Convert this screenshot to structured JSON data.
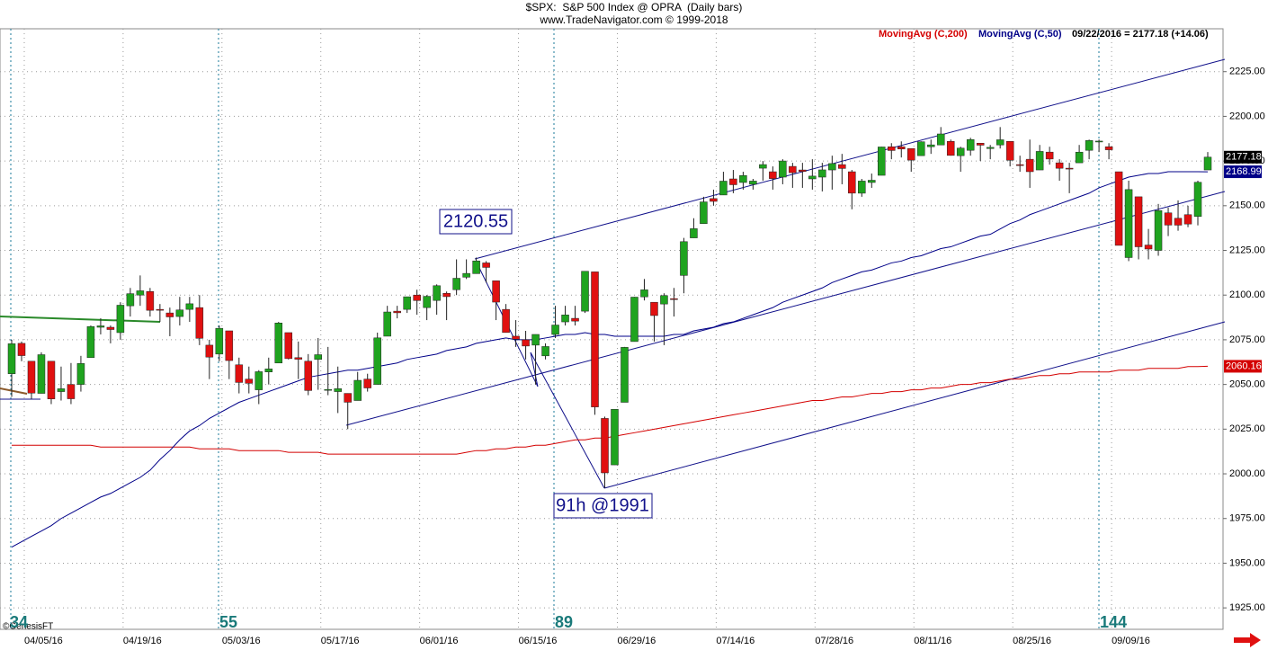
{
  "header": {
    "title": "$SPX:  S&P 500 Index @ OPRA  (Daily bars)",
    "subtitle": "www.TradeNavigator.com © 1999-2018",
    "status": "09/22/2016 = 2177.18 (+14.06)",
    "credit": "©GenesisFT"
  },
  "annotations": [
    "2120.55",
    "91h @1991"
  ],
  "cycles": [
    34,
    55,
    89,
    144
  ],
  "chart_data": {
    "type": "candlestick",
    "categories": [
      null,
      null,
      "04/05/16",
      null,
      null,
      null,
      null,
      null,
      null,
      null,
      null,
      null,
      "04/19/16",
      null,
      null,
      null,
      null,
      null,
      null,
      null,
      null,
      null,
      "05/03/16",
      null,
      null,
      null,
      null,
      null,
      null,
      null,
      null,
      null,
      "05/17/16",
      null,
      null,
      null,
      null,
      null,
      null,
      null,
      null,
      null,
      "06/01/16",
      null,
      null,
      null,
      null,
      null,
      null,
      null,
      null,
      null,
      "06/15/16",
      null,
      null,
      null,
      null,
      null,
      null,
      null,
      null,
      null,
      "06/29/16",
      null,
      null,
      null,
      null,
      null,
      null,
      null,
      null,
      null,
      "07/14/16",
      null,
      null,
      null,
      null,
      null,
      null,
      null,
      null,
      null,
      "07/28/16",
      null,
      null,
      null,
      null,
      null,
      null,
      null,
      null,
      null,
      "08/11/16",
      null,
      null,
      null,
      null,
      null,
      null,
      null,
      null,
      null,
      "08/25/16",
      null,
      null,
      null,
      null,
      null,
      null,
      null,
      null,
      null,
      "09/09/16",
      null,
      null,
      null,
      null,
      null,
      null,
      null,
      null,
      null
    ],
    "open": [
      2056,
      2073,
      2063,
      2045,
      2063,
      2046,
      2050,
      2050,
      2065,
      2082,
      2082,
      2079,
      2094,
      2100,
      2102,
      2092,
      2090,
      2088,
      2092,
      2093,
      2072,
      2067,
      2080,
      2061,
      2053,
      2047,
      2057,
      2062,
      2079,
      2065,
      2063,
      2064,
      2047,
      2046,
      2045,
      2041,
      2053,
      2050,
      2077,
      2091,
      2092,
      2100,
      2093,
      2097,
      2101,
      2103,
      2110,
      2112,
      2118,
      2108,
      2092,
      2077,
      2075,
      2072,
      2066,
      2078,
      2085,
      2087,
      2091,
      2113,
      2031,
      2005,
      2040,
      2074,
      2099,
      2096,
      2095,
      2098,
      2111,
      2132,
      2140,
      2154,
      2156,
      2165,
      2163,
      2162,
      2171,
      2169,
      2166,
      2172,
      2170,
      2165,
      2166,
      2170,
      2173,
      2169,
      2157,
      2163,
      2167,
      2183,
      2183,
      2182,
      2178,
      2183,
      2184,
      2186,
      2178,
      2181,
      2185,
      2182,
      2184,
      2186,
      2173,
      2176,
      2170,
      2180,
      2174,
      2171,
      2174,
      2181,
      2186,
      2183,
      2169,
      2121,
      2155,
      2128,
      2125,
      2146,
      2143,
      2145,
      2144,
      2170
    ],
    "high": [
      2075,
      2074,
      2063,
      2068,
      2063,
      2060,
      2062,
      2066,
      2083,
      2087,
      2083,
      2096,
      2104,
      2111,
      2104,
      2095,
      2093,
      2099,
      2099,
      2100,
      2075,
      2083,
      2080,
      2065,
      2060,
      2058,
      2065,
      2085,
      2079,
      2074,
      2067,
      2076,
      2071,
      2060,
      2045,
      2057,
      2056,
      2079,
      2094,
      2094,
      2099,
      2103,
      2100,
      2106,
      2102,
      2120,
      2120,
      2121,
      2119,
      2108,
      2095,
      2086,
      2080,
      2078,
      2073,
      2094,
      2094,
      2094,
      2113,
      2113,
      2032,
      2036,
      2071,
      2099,
      2109,
      2096,
      2101,
      2104,
      2132,
      2143,
      2155,
      2159,
      2169,
      2170,
      2169,
      2165,
      2175,
      2172,
      2176,
      2174,
      2174,
      2176,
      2174,
      2178,
      2179,
      2170,
      2165,
      2168,
      2183,
      2185,
      2186,
      2182,
      2186,
      2187,
      2194,
      2187,
      2183,
      2188,
      2185,
      2184,
      2194,
      2186,
      2178,
      2187,
      2184,
      2183,
      2176,
      2174,
      2184,
      2187,
      2187,
      2185,
      2169,
      2164,
      2155,
      2137,
      2151,
      2149,
      2153,
      2150,
      2164,
      2180
    ],
    "low": [
      2043,
      2063,
      2042,
      2045,
      2039,
      2041,
      2039,
      2046,
      2065,
      2078,
      2073,
      2075,
      2088,
      2094,
      2088,
      2085,
      2077,
      2083,
      2085,
      2072,
      2053,
      2063,
      2053,
      2045,
      2045,
      2039,
      2050,
      2062,
      2064,
      2053,
      2044,
      2047,
      2044,
      2034,
      2025,
      2041,
      2046,
      2050,
      2077,
      2087,
      2090,
      2089,
      2086,
      2089,
      2086,
      2100,
      2109,
      2112,
      2107,
      2086,
      2079,
      2071,
      2064,
      2050,
      2064,
      2076,
      2083,
      2083,
      2090,
      2033,
      1992,
      2005,
      2040,
      2074,
      2097,
      2074,
      2072,
      2088,
      2101,
      2132,
      2140,
      2150,
      2156,
      2157,
      2159,
      2159,
      2164,
      2159,
      2162,
      2160,
      2160,
      2159,
      2158,
      2159,
      2162,
      2148,
      2155,
      2160,
      2167,
      2176,
      2177,
      2169,
      2178,
      2179,
      2184,
      2178,
      2169,
      2178,
      2175,
      2176,
      2182,
      2172,
      2169,
      2160,
      2170,
      2173,
      2164,
      2157,
      2174,
      2176,
      2180,
      2176,
      2128,
      2119,
      2120,
      2120,
      2122,
      2133,
      2136,
      2138,
      2139,
      2170
    ],
    "close": [
      2072.78,
      2066.13,
      2045.17,
      2066.66,
      2041.91,
      2047.6,
      2041.99,
      2061.72,
      2082.42,
      2082.78,
      2080.73,
      2094.34,
      2100.8,
      2102.4,
      2091.48,
      2091.58,
      2087.79,
      2091.7,
      2095.15,
      2075.81,
      2065.3,
      2081.43,
      2063.37,
      2051.12,
      2050.63,
      2057.14,
      2058.69,
      2084.39,
      2064.46,
      2064.11,
      2046.61,
      2066.66,
      2047.21,
      2047.63,
      2040.04,
      2052.32,
      2048.04,
      2076.06,
      2090.54,
      2090.1,
      2099.06,
      2096.95,
      2099.33,
      2105.26,
      2099.13,
      2109.41,
      2112.13,
      2119.12,
      2115.48,
      2096.07,
      2079.06,
      2075.32,
      2071.5,
      2077.99,
      2071.22,
      2083.25,
      2088.9,
      2085.45,
      2113.32,
      2037.41,
      2000.54,
      2036.09,
      2070.77,
      2098.86,
      2102.95,
      2088.55,
      2099.73,
      2097.9,
      2129.9,
      2137.16,
      2152.14,
      2152.43,
      2163.75,
      2161.74,
      2166.89,
      2163.78,
      2173.02,
      2165.17,
      2175.03,
      2168.48,
      2169.18,
      2166.58,
      2170.06,
      2173.6,
      2170.84,
      2157.03,
      2163.79,
      2164.25,
      2182.87,
      2180.89,
      2181.74,
      2175.49,
      2185.79,
      2184.05,
      2190.15,
      2178.15,
      2182.22,
      2187.02,
      2183.87,
      2182.64,
      2186.9,
      2175.44,
      2172.47,
      2169.04,
      2180.38,
      2176.12,
      2170.95,
      2170.86,
      2179.98,
      2186.48,
      2186.16,
      2181.3,
      2127.81,
      2159.04,
      2127.02,
      2125.77,
      2147.26,
      2139.16,
      2139.12,
      2139.76,
      2163.12,
      2177.18
    ],
    "up_color": "#1fa31f",
    "down_color": "#e01010",
    "series": [
      {
        "name": "MovingAvg (C,200)",
        "color": "#d40000",
        "values": [
          2016,
          2016,
          2016,
          2016,
          2016,
          2016,
          2016,
          2016,
          2016,
          2015,
          2015,
          2015,
          2015,
          2015,
          2015,
          2015,
          2015,
          2015,
          2015,
          2014,
          2014,
          2014,
          2014,
          2013,
          2013,
          2013,
          2013,
          2013,
          2012,
          2012,
          2012,
          2012,
          2011,
          2011,
          2011,
          2011,
          2011,
          2011,
          2011,
          2011,
          2011,
          2011,
          2011,
          2011,
          2011,
          2011,
          2012,
          2013,
          2013,
          2014,
          2014,
          2015,
          2015,
          2016,
          2016,
          2017,
          2018,
          2019,
          2019,
          2020,
          2020,
          2021,
          2022,
          2023,
          2024,
          2025,
          2026,
          2027,
          2028,
          2029,
          2030,
          2031,
          2032,
          2033,
          2034,
          2035,
          2036,
          2037,
          2038,
          2039,
          2040,
          2041,
          2041,
          2042,
          2043,
          2043,
          2044,
          2045,
          2045,
          2046,
          2046,
          2047,
          2047,
          2048,
          2048,
          2049,
          2050,
          2050,
          2051,
          2051,
          2052,
          2053,
          2053,
          2054,
          2055,
          2055,
          2056,
          2056,
          2057,
          2057,
          2057,
          2057,
          2058,
          2058,
          2058,
          2059,
          2059,
          2059,
          2059,
          2060,
          2060,
          2060.16
        ]
      },
      {
        "name": "MovingAvg (C,50)",
        "color": "#000088",
        "values": [
          1959,
          1962,
          1965,
          1968,
          1971,
          1975,
          1978,
          1981,
          1984,
          1987,
          1989,
          1992,
          1995,
          1998,
          2002,
          2008,
          2013,
          2019,
          2024,
          2027,
          2031,
          2034,
          2037,
          2040,
          2042,
          2044,
          2046,
          2048,
          2050,
          2052,
          2054,
          2055,
          2056,
          2057,
          2058,
          2058,
          2059,
          2060,
          2061,
          2062,
          2064,
          2065,
          2066,
          2067,
          2069,
          2070,
          2071,
          2073,
          2074,
          2075,
          2076,
          2075,
          2075,
          2075,
          2076,
          2077,
          2078,
          2078,
          2079,
          2078,
          2078,
          2077,
          2077,
          2077,
          2077,
          2077,
          2077,
          2078,
          2078,
          2080,
          2081,
          2082,
          2084,
          2085,
          2087,
          2089,
          2091,
          2093,
          2096,
          2098,
          2100,
          2102,
          2104,
          2107,
          2109,
          2111,
          2113,
          2114,
          2116,
          2118,
          2119,
          2121,
          2122,
          2124,
          2126,
          2127,
          2129,
          2131,
          2133,
          2134,
          2137,
          2140,
          2142,
          2145,
          2147,
          2149,
          2151,
          2153,
          2155,
          2157,
          2160,
          2162,
          2164,
          2166,
          2167,
          2168,
          2168,
          2169,
          2169,
          2169,
          2169,
          2168.99
        ]
      }
    ],
    "ylim": [
      1913,
      2249
    ],
    "yticks": [
      {
        "value": 1925,
        "label": "1925.00"
      },
      {
        "value": 1950,
        "label": "1950.00"
      },
      {
        "value": 1975,
        "label": "1975.00"
      },
      {
        "value": 2000,
        "label": "2000.00"
      },
      {
        "value": 2025,
        "label": "2025.00"
      },
      {
        "value": 2050,
        "label": "2050.00"
      },
      {
        "value": 2075,
        "label": "2075.00"
      },
      {
        "value": 2100,
        "label": "2100.00"
      },
      {
        "value": 2125,
        "label": "2125.00"
      },
      {
        "value": 2150,
        "label": "2150.00"
      },
      {
        "value": 2175,
        "label": "2175.00"
      },
      {
        "value": 2200,
        "label": "2200.00"
      },
      {
        "value": 2225,
        "label": "2225.00"
      }
    ],
    "grid": true
  }
}
